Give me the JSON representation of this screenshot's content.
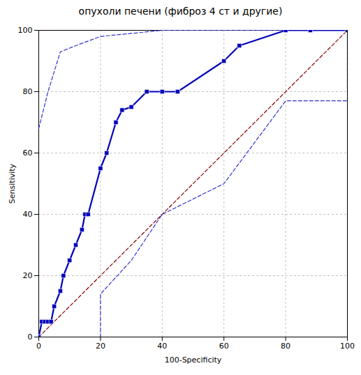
{
  "chart_data": {
    "type": "line",
    "title": "опухоли печени (фиброз 4 ст и другие)",
    "xlabel": "100-Specificity",
    "ylabel": "Sensitivity",
    "series": [
      {
        "color": "#880000",
        "line_style": "dashed",
        "x": [
          0,
          100
        ],
        "values": [
          0,
          100
        ]
      },
      {
        "color": "#3333cc",
        "line_style": "dashed",
        "x": [
          0,
          3,
          7,
          12,
          20,
          30,
          40,
          60,
          80,
          100,
          100
        ],
        "values": [
          68,
          80,
          93,
          95,
          98,
          99,
          100,
          100,
          100,
          100,
          80
        ]
      },
      {
        "color": "#3333cc",
        "line_style": "dashed",
        "x": [
          0,
          20,
          20,
          30,
          40,
          60,
          80,
          100
        ],
        "values": [
          0,
          0,
          14,
          25,
          40,
          50,
          77,
          77
        ]
      },
      {
        "color": "#0000bb",
        "line_style": "solid",
        "marker": "square",
        "x": [
          0,
          1,
          2,
          3,
          4,
          5,
          7,
          8,
          10,
          12,
          14,
          15,
          16,
          20,
          22,
          25,
          27,
          30,
          35,
          40,
          45,
          60,
          65,
          80,
          88,
          100
        ],
        "values": [
          0,
          5,
          5,
          5,
          5,
          10,
          15,
          20,
          25,
          30,
          35,
          40,
          40,
          55,
          60,
          70,
          74,
          75,
          80,
          80,
          80,
          90,
          95,
          100,
          100,
          100
        ]
      }
    ],
    "xlim": [
      0,
      100
    ],
    "ylim": [
      0,
      100
    ],
    "xticks": [
      0,
      20,
      40,
      60,
      80,
      100
    ],
    "yticks": [
      0,
      20,
      40,
      60,
      80,
      100
    ],
    "grid": true
  }
}
